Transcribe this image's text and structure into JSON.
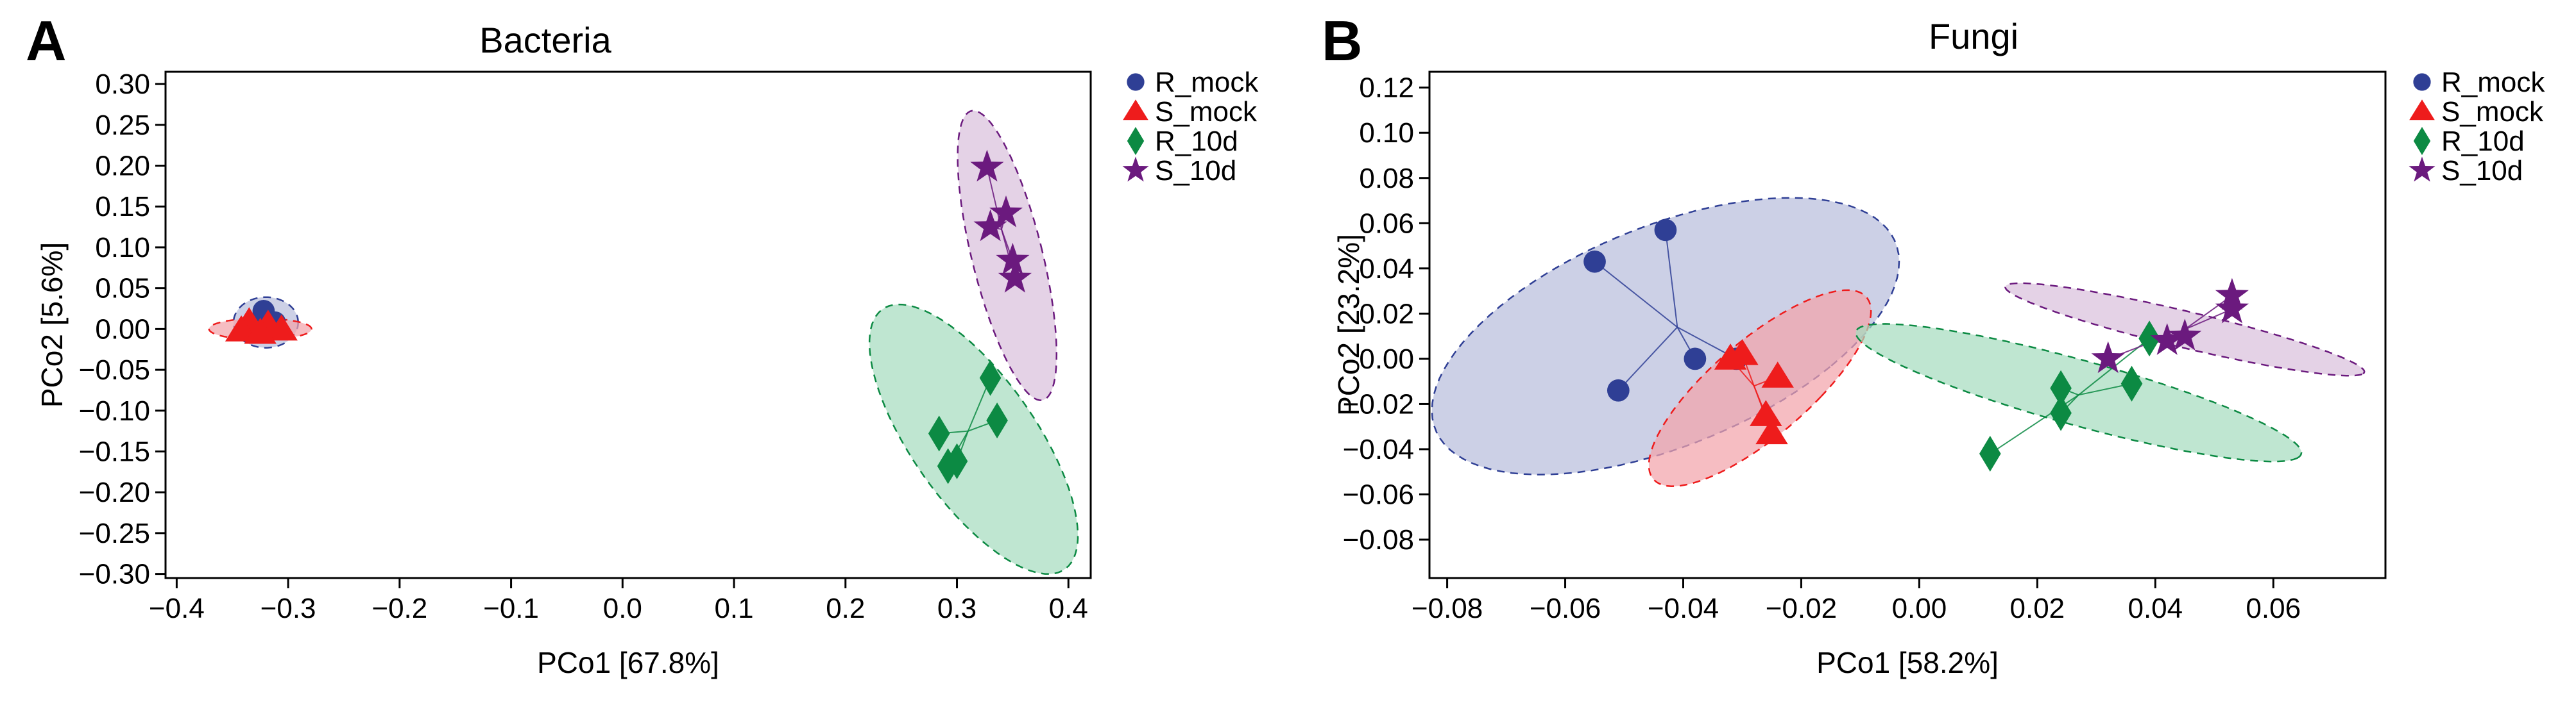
{
  "figure": {
    "panel_labels": [
      "A",
      "B"
    ]
  },
  "colors": {
    "R_mock": "#2f3f95",
    "S_mock": "#ee1c1c",
    "R_10d": "#0c8a43",
    "S_10d": "#6b1a7e",
    "R_mock_fill": "#b8bedc",
    "S_mock_fill": "#f2a3aa",
    "R_10d_fill": "#a6dcbf",
    "S_10d_fill": "#d9c0dd"
  },
  "chart_data": [
    {
      "type": "scatter",
      "panel": "A",
      "title": "Bacteria",
      "xlabel": "PCo1 [67.8%]",
      "ylabel": "PCo2 [5.6%]",
      "xlim": [
        -0.41,
        0.42
      ],
      "ylim": [
        -0.305,
        0.315
      ],
      "xticks": [
        -0.4,
        -0.3,
        -0.2,
        -0.1,
        0.0,
        0.1,
        0.2,
        0.3,
        0.4
      ],
      "xtick_labels": [
        "−0.4",
        "−0.3",
        "−0.2",
        "−0.1",
        "0.0",
        "0.1",
        "0.2",
        "0.3",
        "0.4"
      ],
      "yticks": [
        0.3,
        0.25,
        0.2,
        0.15,
        0.1,
        0.05,
        0.0,
        -0.05,
        -0.1,
        -0.15,
        -0.2,
        -0.25,
        -0.3
      ],
      "ytick_labels": [
        "0.30",
        "0.25",
        "0.20",
        "0.15",
        "0.10",
        "0.05",
        "0.00",
        "−0.05",
        "−0.10",
        "−0.15",
        "−0.20",
        "−0.25",
        "−0.30"
      ],
      "legend_position": "outside-right",
      "series": [
        {
          "name": "R_mock",
          "marker": "circle",
          "points": [
            [
              -0.322,
              0.022
            ],
            [
              -0.312,
              0.008
            ],
            [
              -0.316,
              0.004
            ],
            [
              -0.33,
              0.0
            ]
          ],
          "centroid": [
            -0.32,
            0.008
          ],
          "ellipse": {
            "cx": -0.32,
            "cy": 0.008,
            "rx": 0.029,
            "ry": 0.031,
            "angle": 0
          }
        },
        {
          "name": "S_mock",
          "marker": "triangle",
          "points": [
            [
              -0.335,
              0.008
            ],
            [
              -0.318,
              0.005
            ],
            [
              -0.342,
              -0.002
            ],
            [
              -0.306,
              -0.001
            ],
            [
              -0.325,
              -0.005
            ]
          ],
          "centroid": [
            -0.325,
            0.001
          ],
          "ellipse": {
            "cx": -0.325,
            "cy": 0.0,
            "rx": 0.046,
            "ry": 0.013,
            "angle": 0
          }
        },
        {
          "name": "R_10d",
          "marker": "diamond",
          "points": [
            [
              0.33,
              -0.06
            ],
            [
              0.336,
              -0.112
            ],
            [
              0.284,
              -0.128
            ],
            [
              0.3,
              -0.162
            ],
            [
              0.292,
              -0.168
            ]
          ],
          "centroid": [
            0.31,
            -0.125
          ],
          "ellipse": {
            "cx": 0.315,
            "cy": -0.135,
            "rx": 0.06,
            "ry": 0.18,
            "angle": 25
          }
        },
        {
          "name": "S_10d",
          "marker": "star",
          "points": [
            [
              0.327,
              0.198
            ],
            [
              0.344,
              0.142
            ],
            [
              0.33,
              0.125
            ],
            [
              0.35,
              0.084
            ],
            [
              0.352,
              0.062
            ]
          ],
          "centroid": [
            0.34,
            0.122
          ],
          "ellipse": {
            "cx": 0.345,
            "cy": 0.09,
            "rx": 0.032,
            "ry": 0.18,
            "angle": 10
          }
        }
      ]
    },
    {
      "type": "scatter",
      "panel": "B",
      "title": "Fungi",
      "xlabel": "PCo1 [58.2%]",
      "ylabel": "PCo2 [23.2%]",
      "xlim": [
        -0.083,
        0.079
      ],
      "ylim": [
        -0.097,
        0.127
      ],
      "xticks": [
        -0.08,
        -0.06,
        -0.04,
        -0.02,
        0.0,
        0.02,
        0.04,
        0.06
      ],
      "xtick_labels": [
        "−0.08",
        "−0.06",
        "−0.04",
        "−0.02",
        "0.00",
        "0.02",
        "0.04",
        "0.06"
      ],
      "yticks": [
        0.12,
        0.1,
        0.08,
        0.06,
        0.04,
        0.02,
        0.0,
        -0.02,
        -0.04,
        -0.06,
        -0.08
      ],
      "ytick_labels": [
        "0.12",
        "0.10",
        "0.08",
        "0.06",
        "0.04",
        "0.02",
        "0.00",
        "−0.02",
        "−0.04",
        "−0.06",
        "−0.08"
      ],
      "legend_position": "outside-right",
      "series": [
        {
          "name": "R_mock",
          "marker": "circle",
          "points": [
            [
              -0.043,
              0.057
            ],
            [
              -0.055,
              0.043
            ],
            [
              -0.038,
              0.0
            ],
            [
              -0.051,
              -0.014
            ],
            [
              -0.031,
              0.0
            ]
          ],
          "centroid": [
            -0.041,
            0.014
          ],
          "ellipse": {
            "cx": -0.043,
            "cy": 0.01,
            "rx": 0.031,
            "ry": 0.066,
            "angle": -25
          }
        },
        {
          "name": "S_mock",
          "marker": "triangle",
          "points": [
            [
              -0.03,
              0.002
            ],
            [
              -0.032,
              0.0
            ],
            [
              -0.024,
              -0.008
            ],
            [
              -0.026,
              -0.025
            ],
            [
              -0.025,
              -0.033
            ]
          ],
          "centroid": [
            -0.028,
            -0.012
          ],
          "ellipse": {
            "cx": -0.027,
            "cy": -0.013,
            "rx": 0.011,
            "ry": 0.046,
            "angle": -20
          }
        },
        {
          "name": "R_10d",
          "marker": "diamond",
          "points": [
            [
              0.012,
              -0.042
            ],
            [
              0.024,
              -0.013
            ],
            [
              0.024,
              -0.024
            ],
            [
              0.036,
              -0.011
            ],
            [
              0.039,
              0.009
            ]
          ],
          "centroid": [
            0.027,
            -0.016
          ],
          "ellipse": {
            "cx": 0.027,
            "cy": -0.015,
            "rx": 0.047,
            "ry": 0.012,
            "angle": -38
          }
        },
        {
          "name": "S_10d",
          "marker": "star",
          "points": [
            [
              0.032,
              0.0
            ],
            [
              0.042,
              0.008
            ],
            [
              0.045,
              0.01
            ],
            [
              0.053,
              0.028
            ],
            [
              0.053,
              0.022
            ]
          ],
          "centroid": [
            0.045,
            0.013
          ],
          "ellipse": {
            "cx": 0.045,
            "cy": 0.013,
            "rx": 0.036,
            "ry": 0.007,
            "angle": -33
          }
        }
      ]
    }
  ]
}
